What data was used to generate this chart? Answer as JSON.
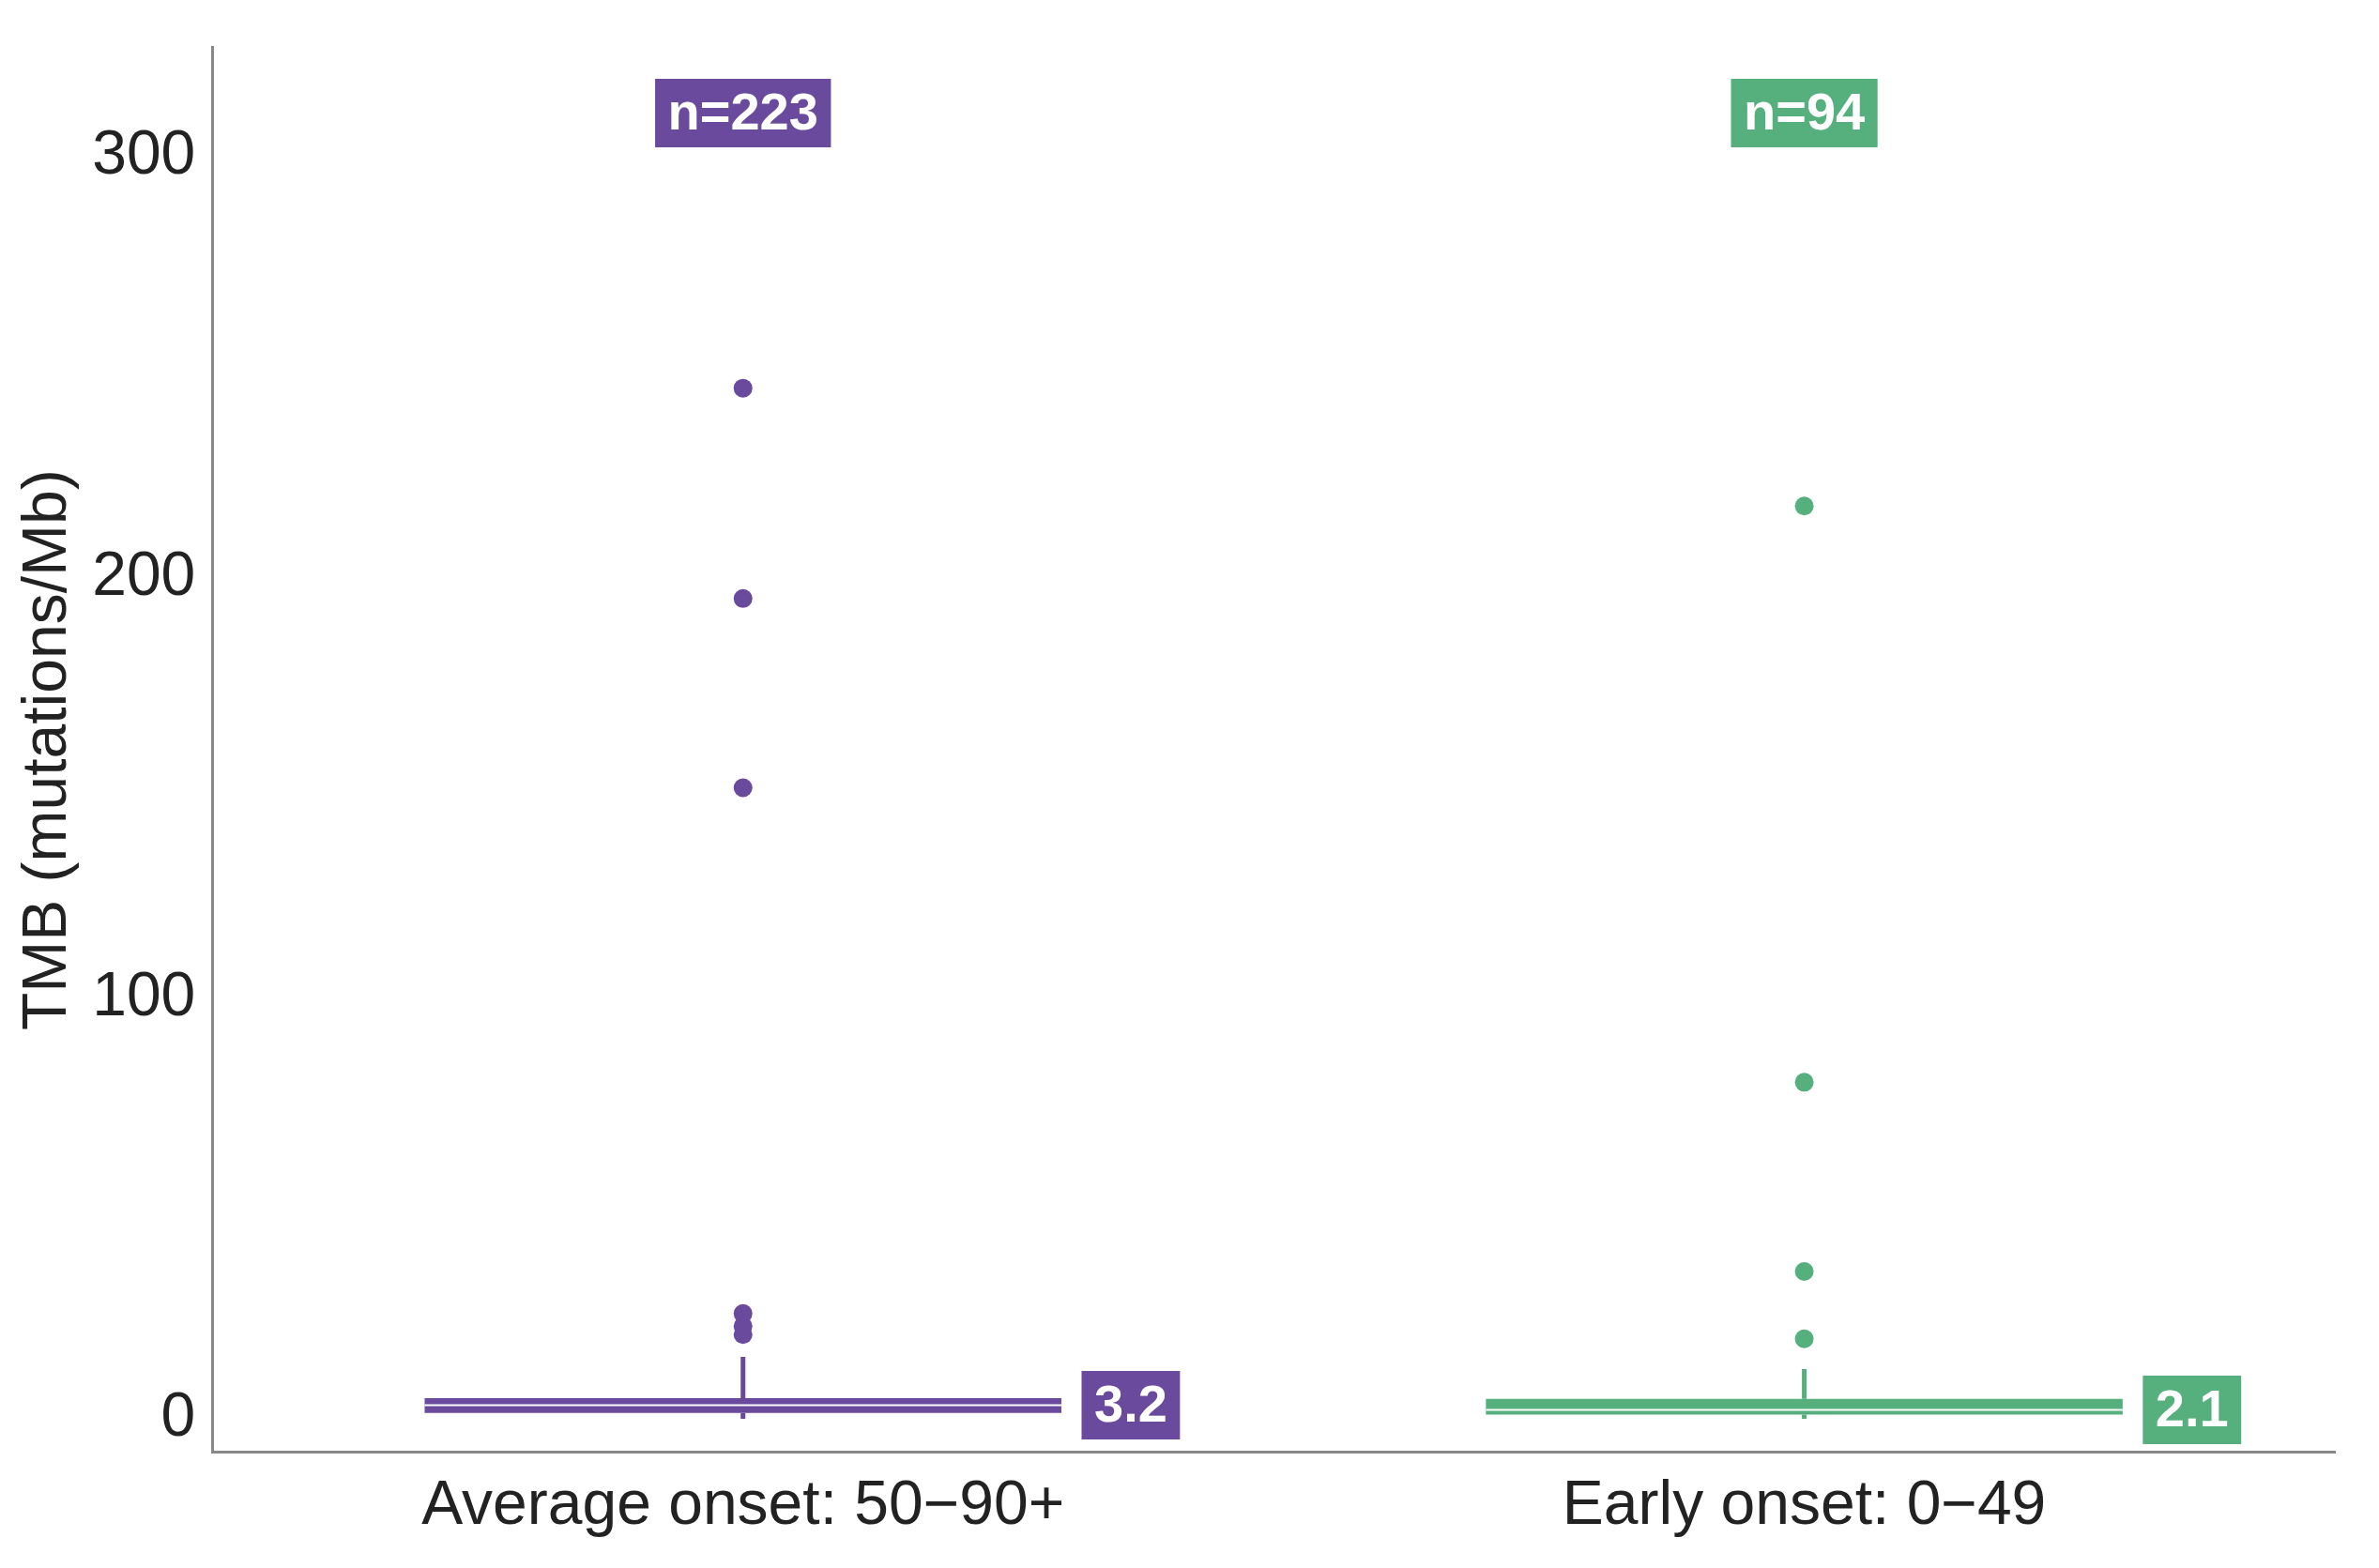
{
  "chart_data": {
    "type": "box",
    "ylabel": "TMB (mutations/Mb)",
    "categories": [
      "Average onset: 50−90+",
      "Early onset: 0−49"
    ],
    "colors": [
      "#6a4a9c",
      "#55b07e"
    ],
    "boxes": [
      {
        "low": 0,
        "q1": 1.4,
        "median": 3.2,
        "q3": 4.9,
        "high": 14.7,
        "outliers": [
          20,
          22,
          25,
          150,
          195,
          245
        ]
      },
      {
        "low": 0,
        "q1": 1,
        "median": 2.1,
        "q3": 4.7,
        "high": 11.8,
        "outliers": [
          19,
          35,
          80,
          217
        ]
      }
    ],
    "ylim": [
      -8,
      326
    ],
    "yticks": [
      0,
      100,
      200,
      300
    ],
    "grid": false,
    "annotations": [
      "n=223",
      "n=94",
      "3.2",
      "2.1"
    ]
  }
}
